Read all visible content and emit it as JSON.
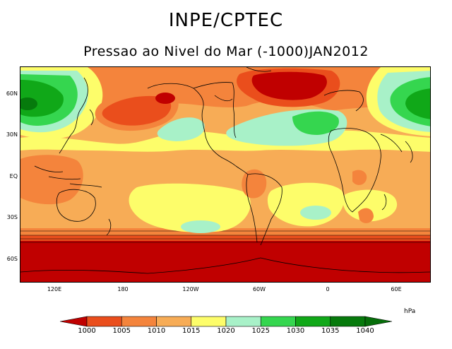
{
  "header": {
    "title": "INPE/CPTEC",
    "subtitle": "Pressao ao Nivel do Mar (-1000)JAN2012"
  },
  "axes": {
    "lat_labels": [
      "60N",
      "30N",
      "EQ",
      "30S",
      "60S"
    ],
    "lon_labels": [
      "120E",
      "180",
      "120W",
      "60W",
      "0",
      "60E"
    ]
  },
  "colorbar": {
    "unit": "hPa",
    "levels": [
      "1000",
      "1005",
      "1010",
      "1015",
      "1020",
      "1025",
      "1030",
      "1035",
      "1040"
    ],
    "colors": [
      "#c00000",
      "#ea4e1c",
      "#f4843c",
      "#f7ac56",
      "#fdfd6a",
      "#a8f1c8",
      "#35d64f",
      "#10a818",
      "#067a0c",
      "#066e0a"
    ]
  },
  "map_colors": {
    "ocean_base": "#f7ac56",
    "coast_line": "#000000"
  }
}
